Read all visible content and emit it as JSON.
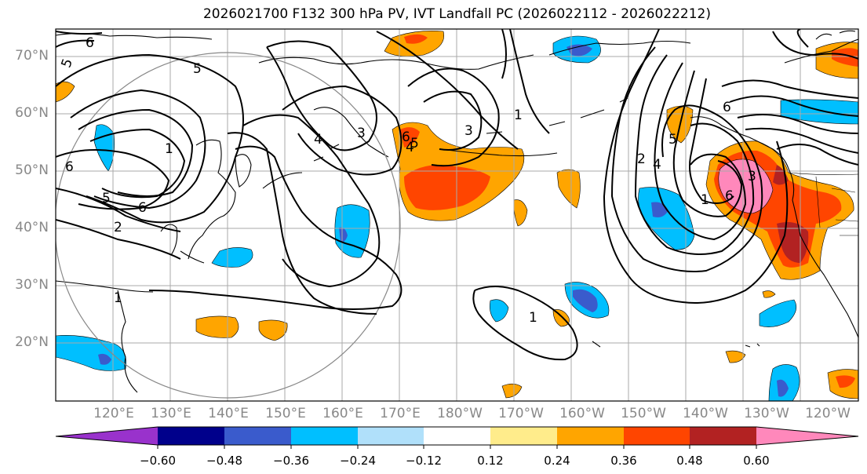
{
  "title": "2026021700 F132 300 hPa PV, IVT Landfall PC (2026022112 - 2026022212)",
  "lat_labels": [
    "70°N",
    "60°N",
    "50°N",
    "40°N",
    "30°N",
    "20°N"
  ],
  "lon_labels": [
    "120°E",
    "130°E",
    "140°E",
    "150°E",
    "160°E",
    "170°E",
    "180°W",
    "170°W",
    "160°W",
    "150°W",
    "140°W",
    "130°W",
    "120°W"
  ],
  "contour_labels": [
    "6",
    "5",
    "5",
    "6",
    "6",
    "5",
    "4",
    "3",
    "4",
    "5",
    "6",
    "3",
    "1",
    "1",
    "2",
    "4",
    "5",
    "6",
    "6",
    "3",
    "1",
    "1",
    "2",
    "1"
  ],
  "colorbar": {
    "tick_labels": [
      "−0.60",
      "−0.48",
      "−0.36",
      "−0.24",
      "−0.12",
      "0.12",
      "0.24",
      "0.36",
      "0.48",
      "0.60"
    ],
    "colors": [
      "#9932cc",
      "#00008b",
      "#3a5bcc",
      "#00bfff",
      "#b0e0fa",
      "#ffffff",
      "#ffec8b",
      "#ffa500",
      "#ff4500",
      "#b22222",
      "#ff88bb"
    ]
  },
  "chart_data": {
    "type": "map",
    "title": "2026021700 F132 300 hPa PV, IVT Landfall PC (2026022112 - 2026022212)",
    "fields": [
      "300 hPa PV (contours)",
      "IVT Landfall PC (shaded)"
    ],
    "lon_range": [
      "110°E",
      "115°W"
    ],
    "lat_range": [
      10,
      75
    ],
    "contour_levels": [
      1,
      2,
      3,
      4,
      5,
      6
    ],
    "shading_levels": [
      -0.6,
      -0.48,
      -0.36,
      -0.24,
      -0.12,
      0.12,
      0.24,
      0.36,
      0.48,
      0.6
    ]
  }
}
